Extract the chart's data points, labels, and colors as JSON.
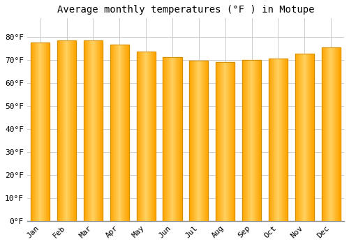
{
  "title": "Average monthly temperatures (°F ) in Motupe",
  "months": [
    "Jan",
    "Feb",
    "Mar",
    "Apr",
    "May",
    "Jun",
    "Jul",
    "Aug",
    "Sep",
    "Oct",
    "Nov",
    "Dec"
  ],
  "values": [
    77.5,
    78.5,
    78.5,
    76.5,
    73.5,
    71.0,
    69.5,
    69.0,
    70.0,
    70.5,
    72.5,
    75.5
  ],
  "bar_color_main": "#FFA500",
  "bar_color_light": "#FFD060",
  "bar_color_edge": "#CC8800",
  "background_color": "#ffffff",
  "grid_color": "#cccccc",
  "ylim": [
    0,
    88
  ],
  "yticks": [
    0,
    10,
    20,
    30,
    40,
    50,
    60,
    70,
    80
  ],
  "title_fontsize": 10,
  "tick_fontsize": 8,
  "title_font": "monospace"
}
